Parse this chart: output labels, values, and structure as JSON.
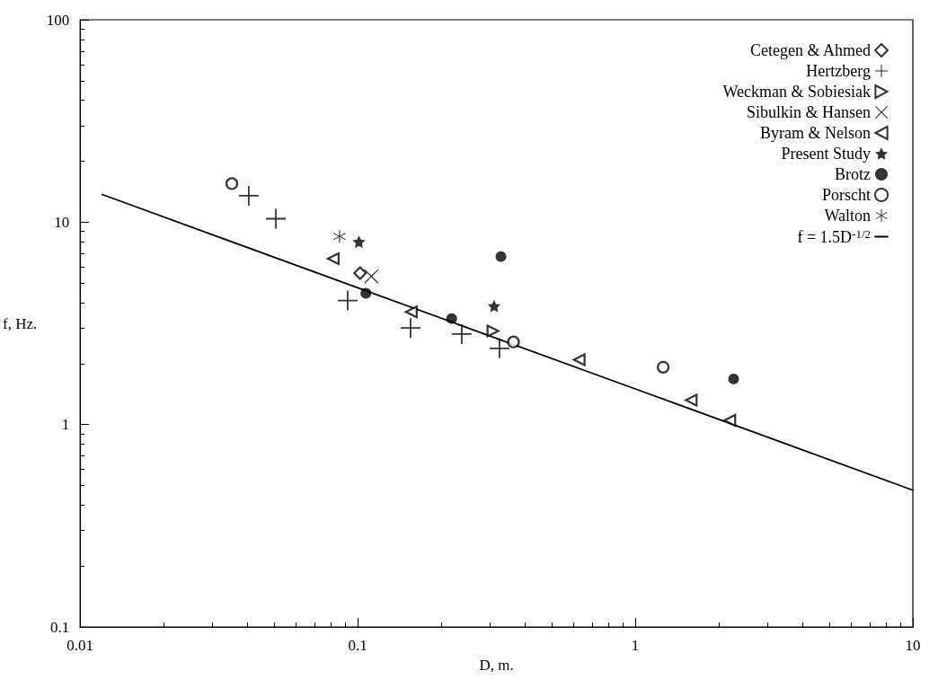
{
  "chart_data": {
    "type": "scatter",
    "xlabel": "D, m.",
    "ylabel": "f, Hz.",
    "log": "xy",
    "grid": false,
    "legend": "top right",
    "xlim": [
      0.01,
      10
    ],
    "xticks": [
      0.01,
      0.1,
      1,
      10
    ],
    "ylim": [
      0.1,
      100
    ],
    "yticks": [
      0.1,
      1,
      10,
      100
    ],
    "series": [
      {
        "name": "Cetegen & Ahmed",
        "marker": "diamond-open",
        "color": "#000000",
        "x": [
          0.102
        ],
        "values": [
          5.6
        ]
      },
      {
        "name": "Hertzberg",
        "marker": "cross",
        "color": "#000000",
        "x": [
          0.0405,
          0.0507,
          0.092,
          0.155,
          0.237,
          0.324
        ],
        "values": [
          13.5,
          10.4,
          4.1,
          3.0,
          2.8,
          2.38
        ]
      },
      {
        "name": "Weckman & Sobiesiak",
        "marker": "triangle-right-open",
        "color": "#000000",
        "x": [
          0.307
        ],
        "values": [
          2.9
        ]
      },
      {
        "name": "Sibulkin & Hansen",
        "marker": "x",
        "color": "#000000",
        "x": [
          0.112
        ],
        "values": [
          5.4
        ]
      },
      {
        "name": "Byram & Nelson",
        "marker": "triangle-left-open",
        "color": "#000000",
        "x": [
          0.0816,
          0.156,
          0.628,
          1.59,
          2.19
        ],
        "values": [
          6.6,
          3.6,
          2.09,
          1.32,
          1.05
        ]
      },
      {
        "name": "Present Study",
        "marker": "star",
        "color": "#000000",
        "x": [
          0.101,
          0.31
        ],
        "values": [
          8.0,
          3.85
        ]
      },
      {
        "name": "Brotz",
        "marker": "circle",
        "color": "#000000",
        "x": [
          0.107,
          0.218,
          0.328,
          2.26
        ],
        "values": [
          4.45,
          3.34,
          6.76,
          1.68
        ]
      },
      {
        "name": "Porscht",
        "marker": "circle-open",
        "color": "#000000",
        "x": [
          0.0352,
          0.364,
          1.26
        ],
        "values": [
          15.5,
          2.56,
          1.92
        ]
      },
      {
        "name": "Walton",
        "marker": "asterisk",
        "color": "#000000",
        "x": [
          0.086
        ],
        "values": [
          8.5
        ]
      },
      {
        "name": "f = 1.5D$^{-1/2}$",
        "type": "line",
        "marker": "none",
        "line_style": "solid",
        "color": "#000000",
        "x": [
          0.012,
          0.1,
          1,
          10
        ],
        "values": [
          13.7,
          4.74,
          1.5,
          0.474
        ]
      }
    ]
  }
}
